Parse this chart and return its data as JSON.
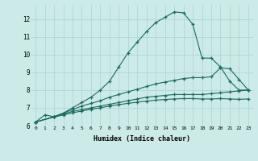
{
  "xlabel": "Humidex (Indice chaleur)",
  "bg_color": "#cceae7",
  "grid_color": "#aad4d0",
  "line_color": "#1a6b5e",
  "xlim": [
    -0.5,
    23.5
  ],
  "ylim": [
    6,
    12.8
  ],
  "xticks": [
    0,
    1,
    2,
    3,
    4,
    5,
    6,
    7,
    8,
    9,
    10,
    11,
    12,
    13,
    14,
    15,
    16,
    17,
    18,
    19,
    20,
    21,
    22,
    23
  ],
  "yticks": [
    6,
    7,
    8,
    9,
    10,
    11,
    12
  ],
  "line1_x": [
    0,
    1,
    2,
    3,
    4,
    5,
    6,
    7,
    8,
    9,
    10,
    11,
    12,
    13,
    14,
    15,
    16,
    17,
    18,
    19,
    20,
    21,
    22,
    23
  ],
  "line1_y": [
    6.2,
    6.6,
    6.5,
    6.7,
    7.0,
    7.3,
    7.6,
    8.0,
    8.5,
    9.3,
    10.1,
    10.7,
    11.3,
    11.8,
    12.1,
    12.4,
    12.35,
    11.7,
    9.8,
    9.8,
    9.3,
    8.5,
    8.0,
    8.0
  ],
  "line2_x": [
    0,
    2,
    3,
    4,
    5,
    6,
    7,
    8,
    9,
    10,
    11,
    12,
    13,
    14,
    15,
    16,
    17,
    18,
    19,
    20,
    21,
    22,
    23
  ],
  "line2_y": [
    6.2,
    6.5,
    6.7,
    6.9,
    7.1,
    7.25,
    7.4,
    7.6,
    7.75,
    7.9,
    8.05,
    8.2,
    8.35,
    8.45,
    8.55,
    8.65,
    8.7,
    8.7,
    8.75,
    9.25,
    9.2,
    8.6,
    8.0
  ],
  "line3_x": [
    0,
    2,
    3,
    4,
    5,
    6,
    7,
    8,
    9,
    10,
    11,
    12,
    13,
    14,
    15,
    16,
    17,
    18,
    19,
    20,
    21,
    22,
    23
  ],
  "line3_y": [
    6.2,
    6.5,
    6.65,
    6.8,
    6.9,
    7.0,
    7.1,
    7.2,
    7.3,
    7.4,
    7.5,
    7.6,
    7.65,
    7.7,
    7.75,
    7.75,
    7.75,
    7.75,
    7.8,
    7.85,
    7.9,
    7.95,
    8.0
  ],
  "line4_x": [
    0,
    2,
    3,
    4,
    5,
    6,
    7,
    8,
    9,
    10,
    11,
    12,
    13,
    14,
    15,
    16,
    17,
    18,
    19,
    20,
    21,
    22,
    23
  ],
  "line4_y": [
    6.2,
    6.48,
    6.6,
    6.72,
    6.82,
    6.92,
    7.0,
    7.1,
    7.18,
    7.25,
    7.32,
    7.38,
    7.43,
    7.47,
    7.5,
    7.52,
    7.52,
    7.5,
    7.5,
    7.52,
    7.5,
    7.48,
    7.5
  ]
}
